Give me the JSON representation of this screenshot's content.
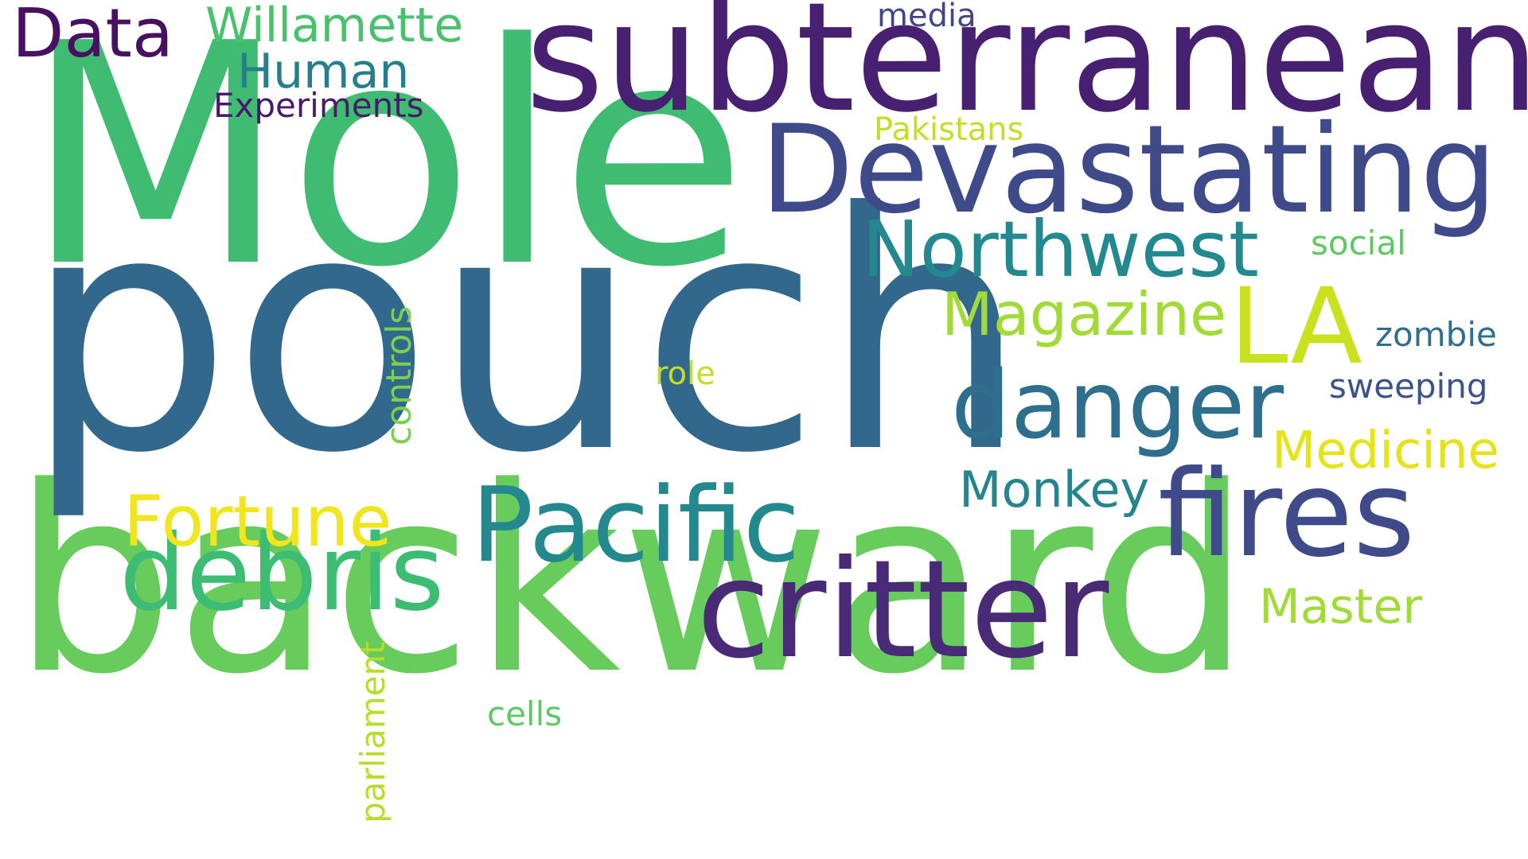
{
  "words": [
    {
      "text": "backward",
      "color": "#68cc5c"
    },
    {
      "text": "pouch",
      "color": "#33688d"
    },
    {
      "text": "Mole",
      "color": "#3fbc72"
    },
    {
      "text": "subterranean",
      "color": "#472071"
    },
    {
      "text": "Devastating",
      "color": "#3f4a8a"
    },
    {
      "text": "critter",
      "color": "#482a76"
    },
    {
      "text": "Pacific",
      "color": "#23898e"
    },
    {
      "text": "debris",
      "color": "#3dbc74"
    },
    {
      "text": "fires",
      "color": "#3f4a8a"
    },
    {
      "text": "danger",
      "color": "#2e6f8e"
    },
    {
      "text": "Northwest",
      "color": "#23898e"
    },
    {
      "text": "LA",
      "color": "#cae11f"
    },
    {
      "text": "Data",
      "color": "#471063"
    },
    {
      "text": "Fortune",
      "color": "#f1e51d"
    },
    {
      "text": "Magazine",
      "color": "#a2da37"
    },
    {
      "text": "Medicine",
      "color": "#e5e419"
    },
    {
      "text": "Monkey",
      "color": "#25858e"
    },
    {
      "text": "Willamette",
      "color": "#4ac16d"
    },
    {
      "text": "Master",
      "color": "#a2da37"
    },
    {
      "text": "Human",
      "color": "#277f8e"
    },
    {
      "text": "controls",
      "color": "#7ad151"
    },
    {
      "text": "parliament",
      "color": "#b5de2b"
    },
    {
      "text": "Experiments",
      "color": "#481a6c"
    },
    {
      "text": "Pakistans",
      "color": "#c0df25"
    },
    {
      "text": "zombie",
      "color": "#2d708e"
    },
    {
      "text": "sweeping",
      "color": "#3b528b"
    },
    {
      "text": "social",
      "color": "#5ec962"
    },
    {
      "text": "media",
      "color": "#404688"
    },
    {
      "text": "role",
      "color": "#c2df23"
    },
    {
      "text": "cells",
      "color": "#5ec962"
    }
  ]
}
